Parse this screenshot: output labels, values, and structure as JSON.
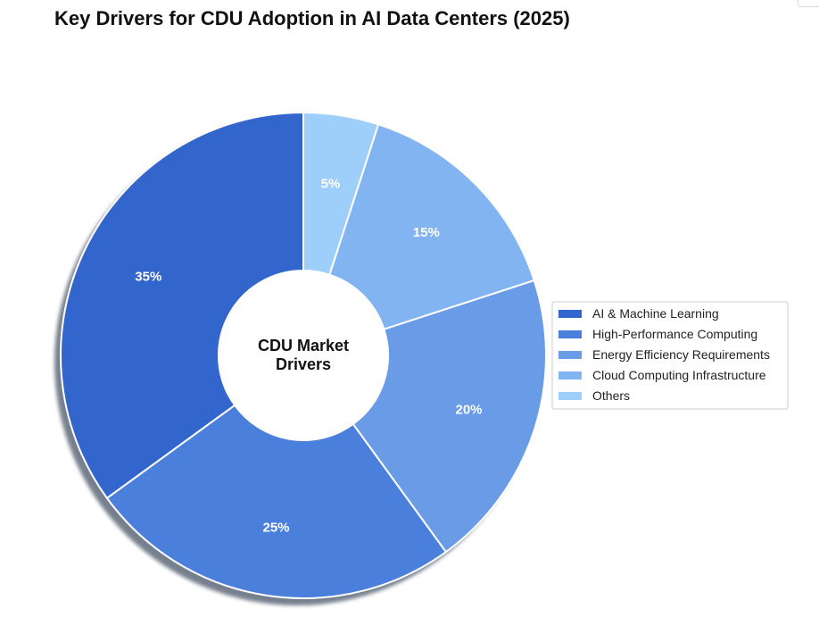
{
  "chart_data": {
    "type": "pie",
    "style": "donut",
    "title": "Key Drivers for CDU Adoption in AI Data Centers (2025)",
    "center_label_lines": [
      "CDU Market",
      "Drivers"
    ],
    "categories": [
      "AI & Machine Learning",
      "High-Performance Computing",
      "Energy Efficiency Requirements",
      "Cloud Computing Infrastructure",
      "Others"
    ],
    "values": [
      35,
      25,
      20,
      15,
      5
    ],
    "value_labels": [
      "35%",
      "25%",
      "20%",
      "15%",
      "5%"
    ],
    "colors": [
      "#3366CC",
      "#4A80DB",
      "#6A9BE6",
      "#82B4F2",
      "#9DCFFA"
    ],
    "legend_position": "right"
  }
}
